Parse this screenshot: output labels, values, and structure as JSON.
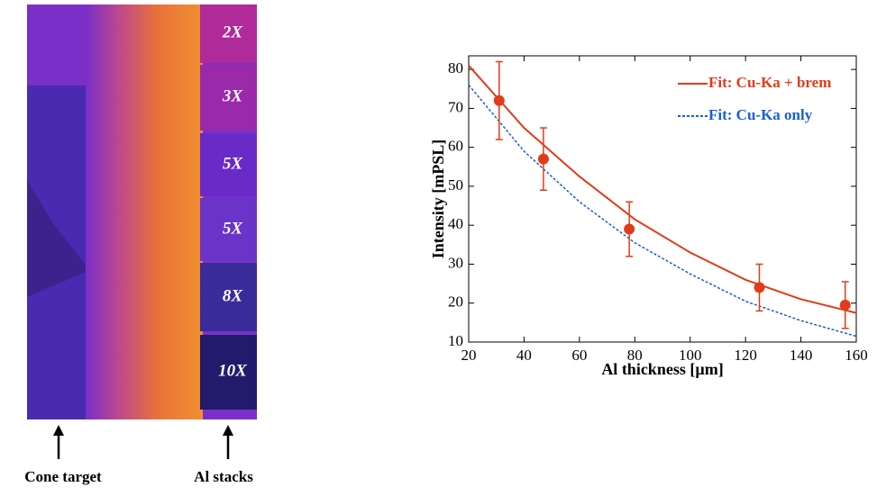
{
  "image_panel": {
    "stack_labels": [
      "2X",
      "3X",
      "5X",
      "5X",
      "8X",
      "10X"
    ],
    "annotations": [
      "Cone target",
      "Al stacks"
    ]
  },
  "chart_data": {
    "type": "scatter",
    "x_label": "Al thickness [µm]",
    "y_label": "Intensity [mPSL]",
    "xlim": [
      20,
      160
    ],
    "ylim": [
      10,
      83.5
    ],
    "xticks": [
      20,
      40,
      60,
      80,
      100,
      120,
      140,
      160
    ],
    "yticks": [
      10,
      20,
      30,
      40,
      50,
      60,
      70,
      80
    ],
    "grid": false,
    "legend": "upper-right",
    "points": {
      "color": "#e03c1a",
      "x": [
        31,
        47,
        78,
        125,
        156
      ],
      "values": [
        72,
        57,
        39,
        24,
        19.5
      ],
      "errors": [
        10,
        8,
        7,
        6,
        6
      ]
    },
    "series": [
      {
        "name": "Fit: Cu-Ka + brem",
        "color": "#e03c1a",
        "style": "solid",
        "x": [
          20,
          40,
          60,
          80,
          100,
          120,
          140,
          160
        ],
        "values": [
          81,
          65,
          52.5,
          41.5,
          33,
          26,
          21,
          17.5
        ]
      },
      {
        "name": "Fit: Cu-Ka only",
        "color": "#1a5fd0",
        "style": "dotted",
        "x": [
          20,
          40,
          60,
          80,
          100,
          120,
          140,
          160
        ],
        "values": [
          76,
          59,
          46,
          35.5,
          27.5,
          20.5,
          15.5,
          11.5
        ]
      }
    ]
  }
}
